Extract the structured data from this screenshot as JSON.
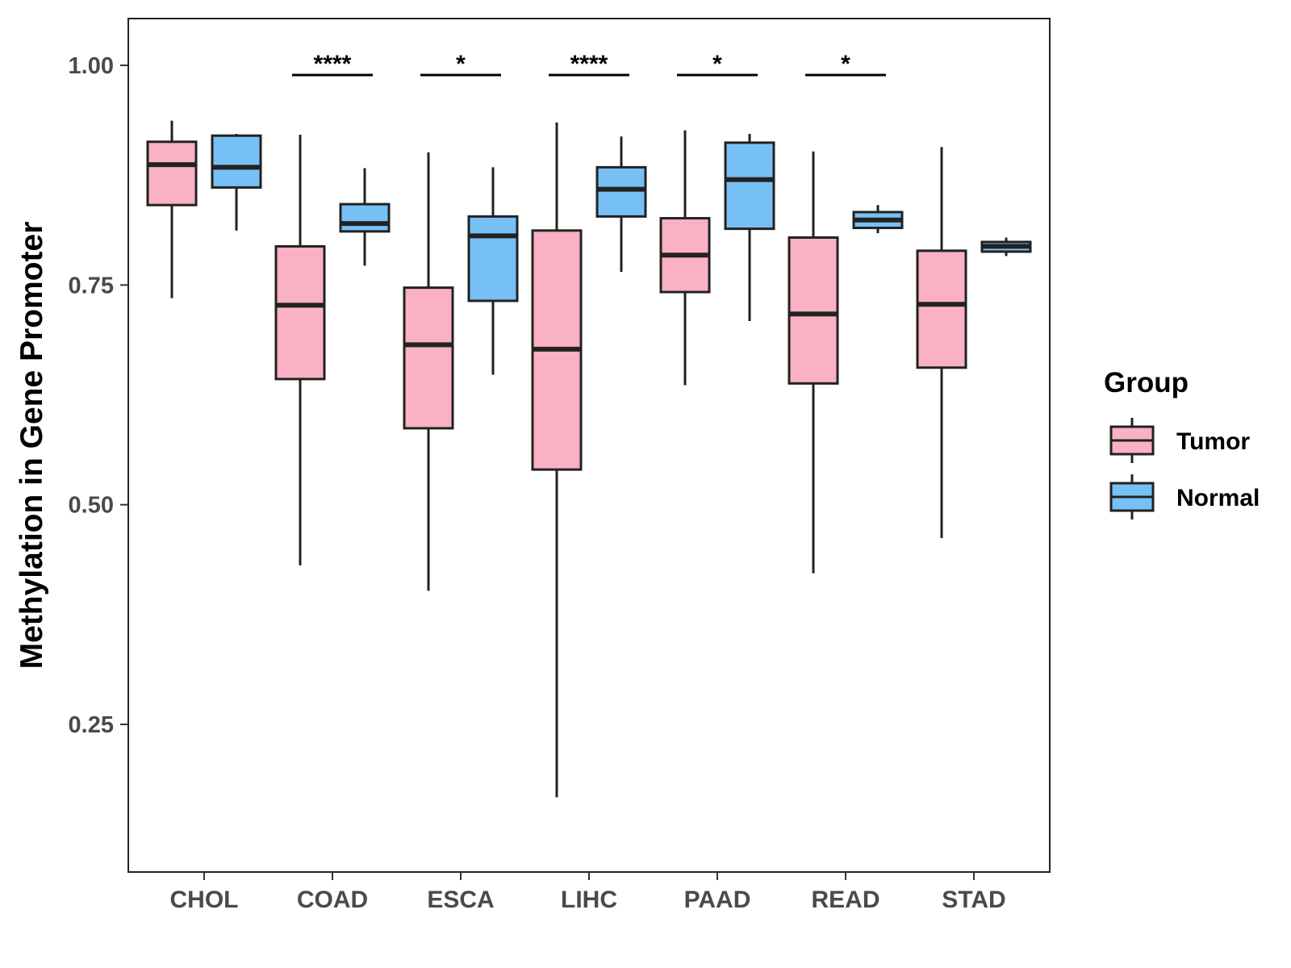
{
  "chart_data": {
    "type": "boxplot",
    "title": "",
    "xlabel": "",
    "ylabel": "Methylation in Gene Promoter",
    "ylim": [
      0.1,
      1.05
    ],
    "yticks": [
      0.25,
      0.5,
      0.75,
      1.0
    ],
    "ytick_labels": [
      "0.25",
      "0.50",
      "0.75",
      "1.00"
    ],
    "grid": false,
    "legend": {
      "title": "Group",
      "position": "right",
      "entries": [
        {
          "name": "Tumor",
          "color": "#F9B1C3"
        },
        {
          "name": "Normal",
          "color": "#77C0F6"
        }
      ]
    },
    "categories": [
      "CHOL",
      "COAD",
      "ESCA",
      "LIHC",
      "PAAD",
      "READ",
      "STAD"
    ],
    "series": [
      {
        "name": "Tumor",
        "color": "#F9B1C3",
        "boxes": [
          {
            "whisker_low": 0.735,
            "q1": 0.841,
            "median": 0.887,
            "q3": 0.913,
            "whisker_high": 0.937
          },
          {
            "whisker_low": 0.431,
            "q1": 0.643,
            "median": 0.727,
            "q3": 0.794,
            "whisker_high": 0.921
          },
          {
            "whisker_low": 0.402,
            "q1": 0.587,
            "median": 0.682,
            "q3": 0.747,
            "whisker_high": 0.901
          },
          {
            "whisker_low": 0.167,
            "q1": 0.54,
            "median": 0.677,
            "q3": 0.812,
            "whisker_high": 0.935
          },
          {
            "whisker_low": 0.636,
            "q1": 0.742,
            "median": 0.784,
            "q3": 0.826,
            "whisker_high": 0.926
          },
          {
            "whisker_low": 0.422,
            "q1": 0.638,
            "median": 0.717,
            "q3": 0.804,
            "whisker_high": 0.902
          },
          {
            "whisker_low": 0.462,
            "q1": 0.656,
            "median": 0.728,
            "q3": 0.789,
            "whisker_high": 0.907
          }
        ]
      },
      {
        "name": "Normal",
        "color": "#77C0F6",
        "boxes": [
          {
            "whisker_low": 0.812,
            "q1": 0.861,
            "median": 0.884,
            "q3": 0.92,
            "whisker_high": 0.922
          },
          {
            "whisker_low": 0.772,
            "q1": 0.811,
            "median": 0.82,
            "q3": 0.842,
            "whisker_high": 0.883
          },
          {
            "whisker_low": 0.648,
            "q1": 0.732,
            "median": 0.806,
            "q3": 0.828,
            "whisker_high": 0.884
          },
          {
            "whisker_low": 0.765,
            "q1": 0.828,
            "median": 0.859,
            "q3": 0.884,
            "whisker_high": 0.919
          },
          {
            "whisker_low": 0.709,
            "q1": 0.814,
            "median": 0.87,
            "q3": 0.912,
            "whisker_high": 0.922
          },
          {
            "whisker_low": 0.809,
            "q1": 0.815,
            "median": 0.824,
            "q3": 0.833,
            "whisker_high": 0.841
          },
          {
            "whisker_low": 0.783,
            "q1": 0.788,
            "median": 0.794,
            "q3": 0.799,
            "whisker_high": 0.804
          }
        ]
      }
    ],
    "annotations": [
      {
        "category": "COAD",
        "label": "****"
      },
      {
        "category": "ESCA",
        "label": "*"
      },
      {
        "category": "LIHC",
        "label": "****"
      },
      {
        "category": "PAAD",
        "label": "*"
      },
      {
        "category": "READ",
        "label": "*"
      }
    ]
  }
}
